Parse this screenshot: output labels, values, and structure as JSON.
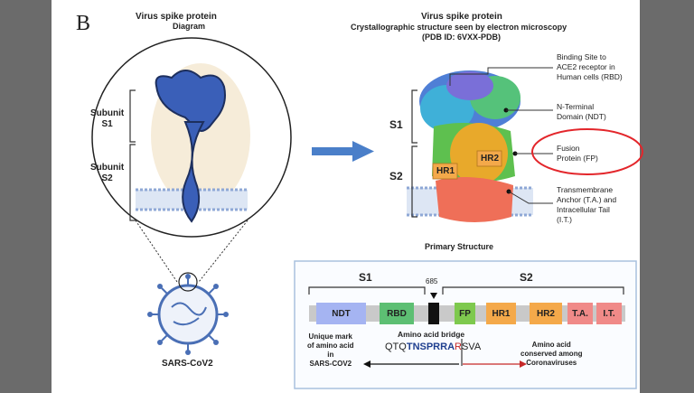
{
  "panel_letter": "B",
  "left": {
    "title": "Virus spike protein",
    "subtitle": "Diagram",
    "subunit_s1": "Subunit\nS1",
    "subunit_s2": "Subunit\nS2",
    "virus_label": "SARS-CoV2"
  },
  "right": {
    "title": "Virus spike protein",
    "subtitle1": "Crystallographic structure seen by electron microscopy",
    "subtitle2": "(PDB ID: 6VXX-PDB)",
    "s1": "S1",
    "s2": "S2",
    "hr1": "HR1",
    "hr2": "HR2",
    "primary_structure": "Primary Structure",
    "callouts": {
      "rbd": "Binding Site to\nACE2 receptor in\nHuman cells (RBD)",
      "ndt": "N-Terminal\nDomain (NDT)",
      "fp": "Fusion\nProtein (FP)",
      "ta": "Transmembrane\nAnchor (T.A.) and\nIntracellular Tail\n(I.T.)"
    }
  },
  "primary": {
    "s1": "S1",
    "s2": "S2",
    "cleavage_position": "685",
    "segments": [
      {
        "label": "NDT",
        "color": "#a5b4f2"
      },
      {
        "label": "RBD",
        "color": "#5dbf73"
      },
      {
        "label": "FP",
        "color": "#7ec94e"
      },
      {
        "label": "HR1",
        "color": "#f4a94a"
      },
      {
        "label": "HR2",
        "color": "#f4a94a"
      },
      {
        "label": "T.A.",
        "color": "#f08a88"
      },
      {
        "label": "I.T.",
        "color": "#f08a88"
      }
    ],
    "bridge_title": "Amino acid bridge",
    "seq_a": "QTQ",
    "seq_b": "TNSPRRA",
    "seq_c": "R",
    "seq_d": "SVA",
    "unique_mark": "Unique mark\nof amino acid\nin\nSARS-COV2",
    "conserved": "Amino acid\nconserved among\nCoronaviruses"
  },
  "colors": {
    "spike_blue": "#3a5fb8",
    "arrow_blue": "#4a7fc9",
    "circle_red": "#e3262b",
    "box_border": "#a9c1de",
    "virus_blue": "#4a6fb5",
    "seq_blue": "#1f3f8f",
    "seq_red": "#c62828"
  }
}
